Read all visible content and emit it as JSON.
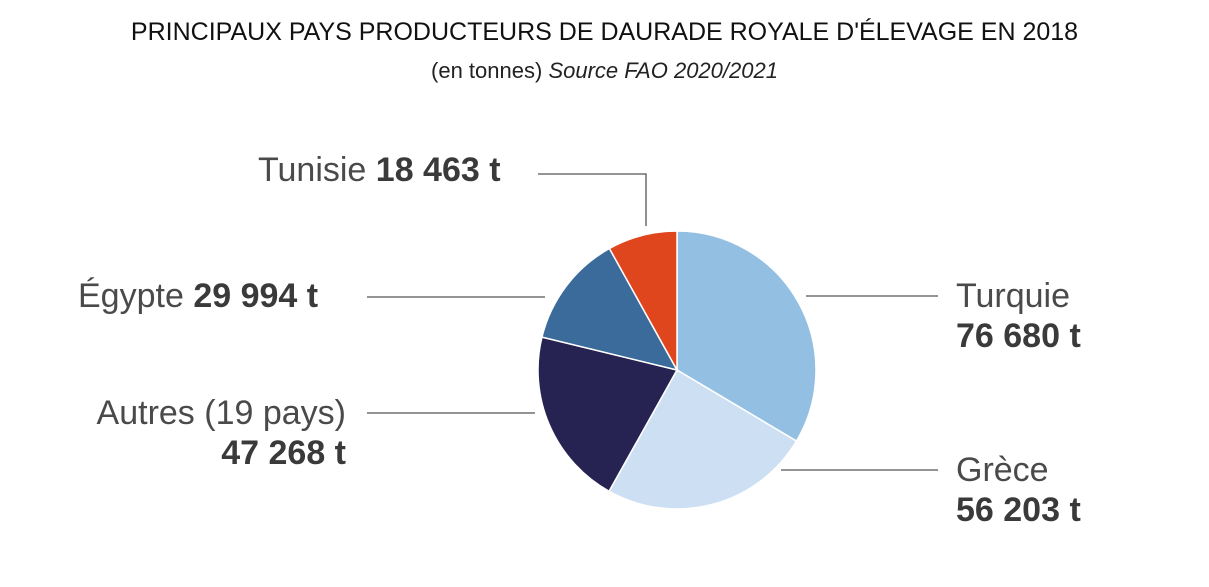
{
  "header": {
    "title": "PRINCIPAUX PAYS PRODUCTEURS DE DAURADE ROYALE D'ÉLEVAGE EN 2018",
    "subtitle_unit": "(en tonnes)",
    "subtitle_source": "Source FAO 2020/2021"
  },
  "chart_data": {
    "type": "pie",
    "title": "PRINCIPAUX PAYS PRODUCTEURS DE DAURADE ROYALE D'ÉLEVAGE EN 2018",
    "subtitle": "(en tonnes) Source FAO 2020/2021",
    "unit": "t",
    "slices": [
      {
        "key": "turquie",
        "label": "Turquie",
        "value": 76680,
        "display": "76 680 t",
        "color": "#93bfe2"
      },
      {
        "key": "grece",
        "label": "Grèce",
        "value": 56203,
        "display": "56 203 t",
        "color": "#cde0f3"
      },
      {
        "key": "autres",
        "label": "Autres (19 pays)",
        "value": 47268,
        "display": "47 268 t",
        "color": "#262352"
      },
      {
        "key": "egypte",
        "label": "Égypte",
        "value": 29994,
        "display": "29 994 t",
        "color": "#3a6b9b"
      },
      {
        "key": "tunisie",
        "label": "Tunisie",
        "value": 18463,
        "display": "18 463 t",
        "color": "#e0461e"
      }
    ],
    "start": "12 o'clock",
    "direction": "clockwise"
  }
}
